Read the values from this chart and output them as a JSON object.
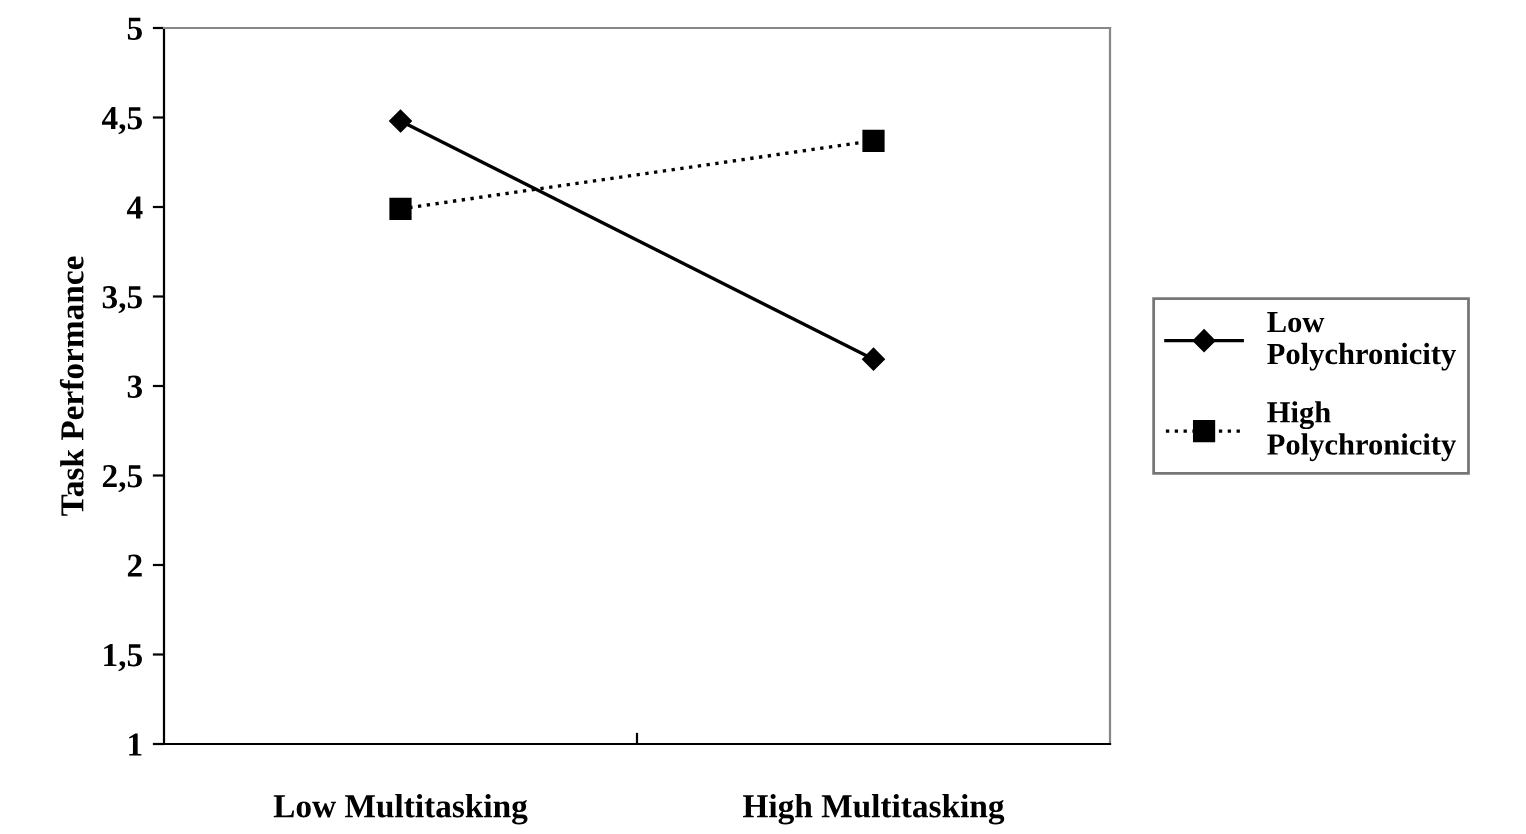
{
  "chart_data": {
    "type": "line",
    "ylabel": "Task Performance",
    "categories": [
      "Low Multitasking",
      "High Multitasking"
    ],
    "series": [
      {
        "name": "Low Polychronicity",
        "color": "#000000",
        "values": [
          4.48,
          3.15
        ],
        "marker": "diamond",
        "line_style": "solid"
      },
      {
        "name": "High Polychronicity",
        "color": "#000000",
        "values": [
          3.99,
          4.37
        ],
        "marker": "square",
        "line_style": "dotted"
      }
    ],
    "ylim": [
      1,
      5
    ],
    "yticks": [
      1,
      {
        "value": 1.5,
        "label": "1,5"
      },
      2,
      {
        "value": 2.5,
        "label": "2,5"
      },
      3,
      {
        "value": 3.5,
        "label": "3,5"
      },
      4,
      {
        "value": 4.5,
        "label": "4,5"
      },
      5
    ],
    "grid": false,
    "legend": "right"
  }
}
